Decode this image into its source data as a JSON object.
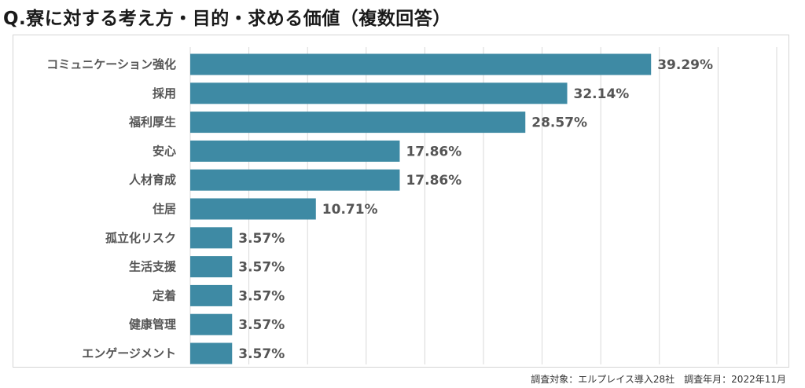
{
  "title": "Q.寮に対する考え方・目的・求める価値（複数回答）",
  "footnote": "調査対象：エルプレイス導入28社　調査年月：2022年11月",
  "colors": {
    "bar": "#3e8aa4",
    "grid": "#d9d9d9",
    "text": "#555555"
  },
  "chart_data": {
    "type": "bar",
    "orientation": "horizontal",
    "title": "Q.寮に対する考え方・目的・求める価値（複数回答）",
    "xlabel": "",
    "ylabel": "",
    "xlim": [
      0,
      50
    ],
    "grid": true,
    "legend": "none",
    "value_suffix": "%",
    "categories": [
      "コミュニケーション強化",
      "採用",
      "福利厚生",
      "安心",
      "人材育成",
      "住居",
      "孤立化リスク",
      "生活支援",
      "定着",
      "健康管理",
      "エンゲージメント"
    ],
    "values": [
      39.29,
      32.14,
      28.57,
      17.86,
      17.86,
      10.71,
      3.57,
      3.57,
      3.57,
      3.57,
      3.57
    ],
    "value_labels": [
      "39.29%",
      "32.14%",
      "28.57%",
      "17.86%",
      "17.86%",
      "10.71%",
      "3.57%",
      "3.57%",
      "3.57%",
      "3.57%",
      "3.57%"
    ]
  }
}
